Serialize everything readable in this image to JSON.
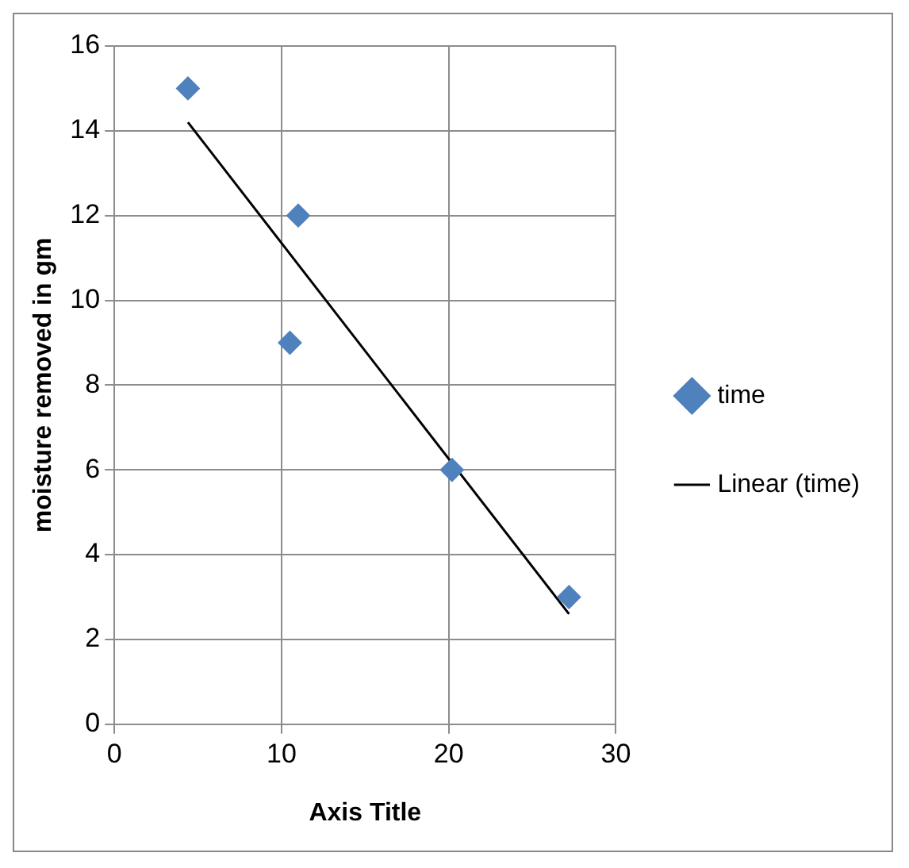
{
  "chart_data": {
    "type": "scatter",
    "xlabel": "Axis Title",
    "ylabel": "moisture removed in gm",
    "series": [
      {
        "name": "time",
        "color": "#4f81bd",
        "marker": "diamond",
        "x": [
          4.4,
          11,
          10.5,
          20.2,
          27.2
        ],
        "values": [
          15,
          12,
          9,
          6,
          3
        ]
      },
      {
        "name": "Linear (time)",
        "type": "line",
        "color": "#000000",
        "marker": "none",
        "x": [
          4.4,
          27.2
        ],
        "values": [
          14.2,
          2.6
        ]
      }
    ],
    "xlim": [
      0,
      30
    ],
    "xticks": [
      0,
      10,
      20,
      30
    ],
    "ylim": [
      0,
      16
    ],
    "yticks": [
      0,
      2,
      4,
      6,
      8,
      10,
      12,
      14,
      16
    ],
    "grid": true,
    "legend": "right"
  }
}
